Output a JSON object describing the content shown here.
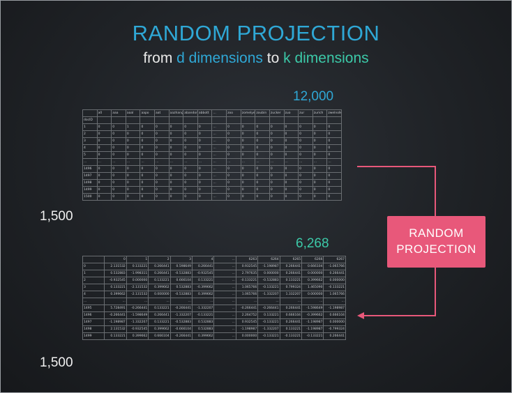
{
  "title": "RANDOM PROJECTION",
  "subtitle": {
    "from": "from",
    "d": "d dimensions",
    "to": "to",
    "k": "k dimensions"
  },
  "top_table": {
    "col_count_label": "12,000",
    "row_count_label": "1,500",
    "headers": [
      "",
      "a0",
      "aaa",
      "aaal",
      "aapo",
      "aat",
      "aazhang",
      "abandonment",
      "abbott",
      "...",
      "zoo",
      "zomelyer",
      "zoubin",
      "zucker",
      "zuo",
      "zur",
      "zurich",
      "zwelnolk"
    ],
    "index_header": "docID",
    "rows": [
      [
        "1",
        "0",
        "0",
        "1",
        "0",
        "0",
        "0",
        "0",
        "0",
        "...",
        "0",
        "0",
        "0",
        "0",
        "0",
        "0",
        "0",
        "0"
      ],
      [
        "2",
        "0",
        "0",
        "0",
        "0",
        "0",
        "0",
        "0",
        "0",
        "...",
        "0",
        "0",
        "0",
        "0",
        "0",
        "0",
        "0",
        "0"
      ],
      [
        "3",
        "0",
        "0",
        "0",
        "0",
        "0",
        "0",
        "0",
        "0",
        "...",
        "0",
        "0",
        "0",
        "0",
        "0",
        "0",
        "0",
        "0"
      ],
      [
        "4",
        "0",
        "0",
        "0",
        "0",
        "0",
        "0",
        "0",
        "0",
        "...",
        "0",
        "0",
        "0",
        "0",
        "0",
        "0",
        "0",
        "0"
      ],
      [
        "5",
        "0",
        "0",
        "0",
        "0",
        "0",
        "0",
        "0",
        "0",
        "...",
        "0",
        "0",
        "0",
        "0",
        "0",
        "0",
        "0",
        "0"
      ],
      [
        "...",
        "...",
        "...",
        "...",
        "...",
        "...",
        "...",
        "...",
        "...",
        "...",
        "...",
        "...",
        "...",
        "...",
        "...",
        "...",
        "...",
        "..."
      ],
      [
        "1496",
        "0",
        "0",
        "0",
        "0",
        "0",
        "0",
        "0",
        "0",
        "...",
        "0",
        "0",
        "0",
        "0",
        "0",
        "0",
        "0",
        "0"
      ],
      [
        "1497",
        "0",
        "0",
        "0",
        "0",
        "0",
        "0",
        "0",
        "0",
        "...",
        "0",
        "0",
        "0",
        "0",
        "0",
        "0",
        "0",
        "0"
      ],
      [
        "1498",
        "0",
        "0",
        "0",
        "0",
        "0",
        "0",
        "0",
        "0",
        "...",
        "0",
        "0",
        "0",
        "0",
        "0",
        "0",
        "0",
        "0"
      ],
      [
        "1499",
        "0",
        "0",
        "0",
        "0",
        "0",
        "0",
        "0",
        "0",
        "...",
        "0",
        "0",
        "0",
        "0",
        "0",
        "0",
        "0",
        "0"
      ],
      [
        "1500",
        "0",
        "0",
        "0",
        "0",
        "0",
        "0",
        "0",
        "0",
        "...",
        "0",
        "0",
        "0",
        "0",
        "0",
        "0",
        "0",
        "0"
      ]
    ]
  },
  "bottom_table": {
    "col_count_label": "6,268",
    "row_count_label": "1,500",
    "headers": [
      "",
      "0",
      "1",
      "2",
      "3",
      "4",
      "...",
      "6263",
      "6264",
      "6265",
      "6266",
      "6267"
    ],
    "rows": [
      [
        "0",
        "2.131532",
        "0.133221",
        "0.266441",
        "0.598649",
        "0.266441",
        "...",
        "0.932545",
        "-1.198987",
        "0.266441",
        "0.666104",
        "-1.065766"
      ],
      [
        "1",
        "0.532883",
        "-1.998311",
        "0.266441",
        "-0.532883",
        "-0.932545",
        "...",
        "2.797635",
        "0.000000",
        "0.266441",
        "0.000000",
        "0.266441"
      ],
      [
        "2",
        "-0.932545",
        "0.000000",
        "0.133221",
        "0.666104",
        "0.133221",
        "...",
        "-0.133221",
        "-0.532883",
        "0.133221",
        "0.399662",
        "0.000000"
      ],
      [
        "3",
        "0.133221",
        "-2.131532",
        "0.399662",
        "0.532883",
        "-0.399662",
        "...",
        "1.065766",
        "-0.133221",
        "0.799324",
        "1.465090",
        "-0.133221"
      ],
      [
        "4",
        "0.399662",
        "-2.131532",
        "0.000000",
        "-0.532883",
        "0.399662",
        "...",
        "1.065766",
        "-1.332207",
        "1.332207",
        "0.000000",
        "1.065766"
      ],
      [
        "...",
        "...",
        "...",
        "...",
        "...",
        "...",
        "...",
        "...",
        "...",
        "...",
        "...",
        "..."
      ],
      [
        "1495",
        "5.728491",
        "-0.266441",
        "0.133221",
        "-0.266441",
        "-1.332207",
        "...",
        "-0.266441",
        "-0.266441",
        "0.266441",
        "-1.598649",
        "-1.198987"
      ],
      [
        "1496",
        "-0.266441",
        "-1.598649",
        "0.266441",
        "-1.332207",
        "-0.133221",
        "...",
        "2.264752",
        "0.133221",
        "0.666104",
        "-0.399662",
        "0.666104"
      ],
      [
        "1497",
        "-1.198987",
        "-1.332207",
        "0.133221",
        "-0.532883",
        "0.532883",
        "...",
        "0.932545",
        "-0.133221",
        "0.266441",
        "-1.198987",
        "0.000000"
      ],
      [
        "1498",
        "2.131532",
        "-0.932545",
        "0.399662",
        "-0.666104",
        "0.532883",
        "...",
        "-1.198987",
        "-1.332207",
        "0.133221",
        "-1.198987",
        "-0.799324"
      ],
      [
        "1499",
        "0.133221",
        "0.399662",
        "0.666104",
        "-0.266441",
        "0.399662",
        "...",
        "0.000000",
        "-0.133221",
        "-0.133221",
        "-0.133221",
        "0.266441"
      ]
    ]
  },
  "transform_box": {
    "line1": "RANDOM",
    "line2": "PROJECTION"
  },
  "colors": {
    "title": "#2fa8d6",
    "k": "#3cc9a8",
    "accent": "#e8587a",
    "background": "#1f2226"
  }
}
